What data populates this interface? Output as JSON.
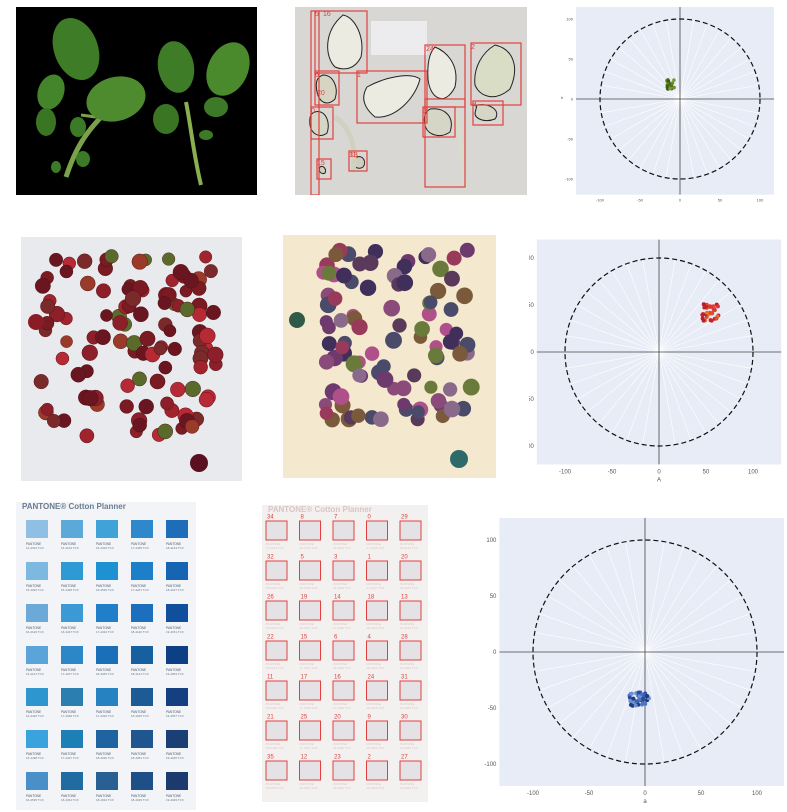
{
  "pantone": {
    "title": "PANTONE® Cotton Planner",
    "code_prefix": "PANTONE",
    "codes": [
      [
        "14-4313 TCX",
        "16-4132 TCX",
        "15-4323 TCX",
        "17-4435 TCX",
        "18-4143 TCX"
      ],
      [
        "15-4020 TCX",
        "15-4428 TCX",
        "16-4536 TCX",
        "17-4247 TCX",
        "18-4247 TCX"
      ],
      [
        "16-4120 TCX",
        "16-4427 TCX",
        "17-4432 TCX",
        "18-4140 TCX",
        "19-4151 TCX"
      ],
      [
        "16-4141 TCX",
        "17-4247 TCX",
        "18-4045 TCX",
        "18-4141 TCX",
        "19-4053 TCX"
      ],
      [
        "16-4440 TCX",
        "17-4328 TCX",
        "17-4433 TCX",
        "18-4025 TCX",
        "19-4057 TCX"
      ],
      [
        "16-4438 TCX",
        "17-4427 TCX",
        "18-4330 TCX",
        "18-4051 TCX",
        "19-4045 TCX"
      ],
      [
        "16-4535 TCX",
        "18-4334 TCX",
        "18-4032 TCX",
        "18-4039 TCX",
        "19-4049 TCX"
      ]
    ],
    "colors": [
      [
        "#8fc0e3",
        "#5aa9d9",
        "#3fa3d8",
        "#2f87cc",
        "#1d6db8"
      ],
      [
        "#7cb8e0",
        "#2e9ad5",
        "#1e91d3",
        "#1e7fc9",
        "#1565b2"
      ],
      [
        "#6aa9d8",
        "#3b9ad6",
        "#1f80c9",
        "#1b6fbd",
        "#0f4f9c"
      ],
      [
        "#5aa4da",
        "#2c86c8",
        "#1a6fb8",
        "#17609f",
        "#0d3f85"
      ],
      [
        "#2e96cf",
        "#2b7fb0",
        "#2682c0",
        "#1d5b95",
        "#143f80"
      ],
      [
        "#3aa2dc",
        "#1d7fb5",
        "#1f63a0",
        "#1f568f",
        "#1a3f75"
      ],
      [
        "#4a8fc8",
        "#1f6ba2",
        "#2a5f93",
        "#1e4f86",
        "#1c3a6e"
      ]
    ]
  },
  "pantone_seg": {
    "title": "PANTONE® Cotton Planner",
    "labels": [
      [
        "34",
        "8",
        "7",
        "0",
        "29"
      ],
      [
        "32",
        "5",
        "3",
        "1",
        "20"
      ],
      [
        "26",
        "19",
        "14",
        "18",
        "13"
      ],
      [
        "22",
        "15",
        "6",
        "4",
        "28"
      ],
      [
        "11",
        "17",
        "16",
        "24",
        "31"
      ],
      [
        "21",
        "25",
        "20",
        "9",
        "30"
      ],
      [
        "35",
        "12",
        "23",
        "2",
        "27"
      ]
    ]
  },
  "leaf_seg": {
    "labels": [
      "5",
      "16",
      "24",
      "2",
      "6",
      "1",
      "4",
      "0",
      "3",
      "15",
      "11",
      "13",
      "20"
    ]
  },
  "plots": [
    {
      "radius": 100,
      "outer": 130,
      "x_ticks": [
        "-100",
        "-50",
        "0",
        "50",
        "100"
      ],
      "y_ticks": [
        "100",
        "50",
        "0",
        "-50",
        "-100"
      ],
      "xlabel": "a",
      "ylabel": "b",
      "accent": "#4e6e1c"
    },
    {
      "radius": 100,
      "outer": 130,
      "x_ticks": [
        "-100",
        "-50",
        "0",
        "50",
        "100"
      ],
      "y_ticks": [
        "100",
        "50",
        "0",
        "-50",
        "-100"
      ],
      "xlabel": "A",
      "ylabel": "B",
      "accent": "#d8353a"
    },
    {
      "radius": 100,
      "outer": 130,
      "x_ticks": [
        "-100",
        "-50",
        "0",
        "50",
        "100"
      ],
      "y_ticks": [
        "100",
        "50",
        "0",
        "-50",
        "-100"
      ],
      "xlabel": "a",
      "ylabel": "b",
      "accent": "#2c4a9a"
    }
  ]
}
